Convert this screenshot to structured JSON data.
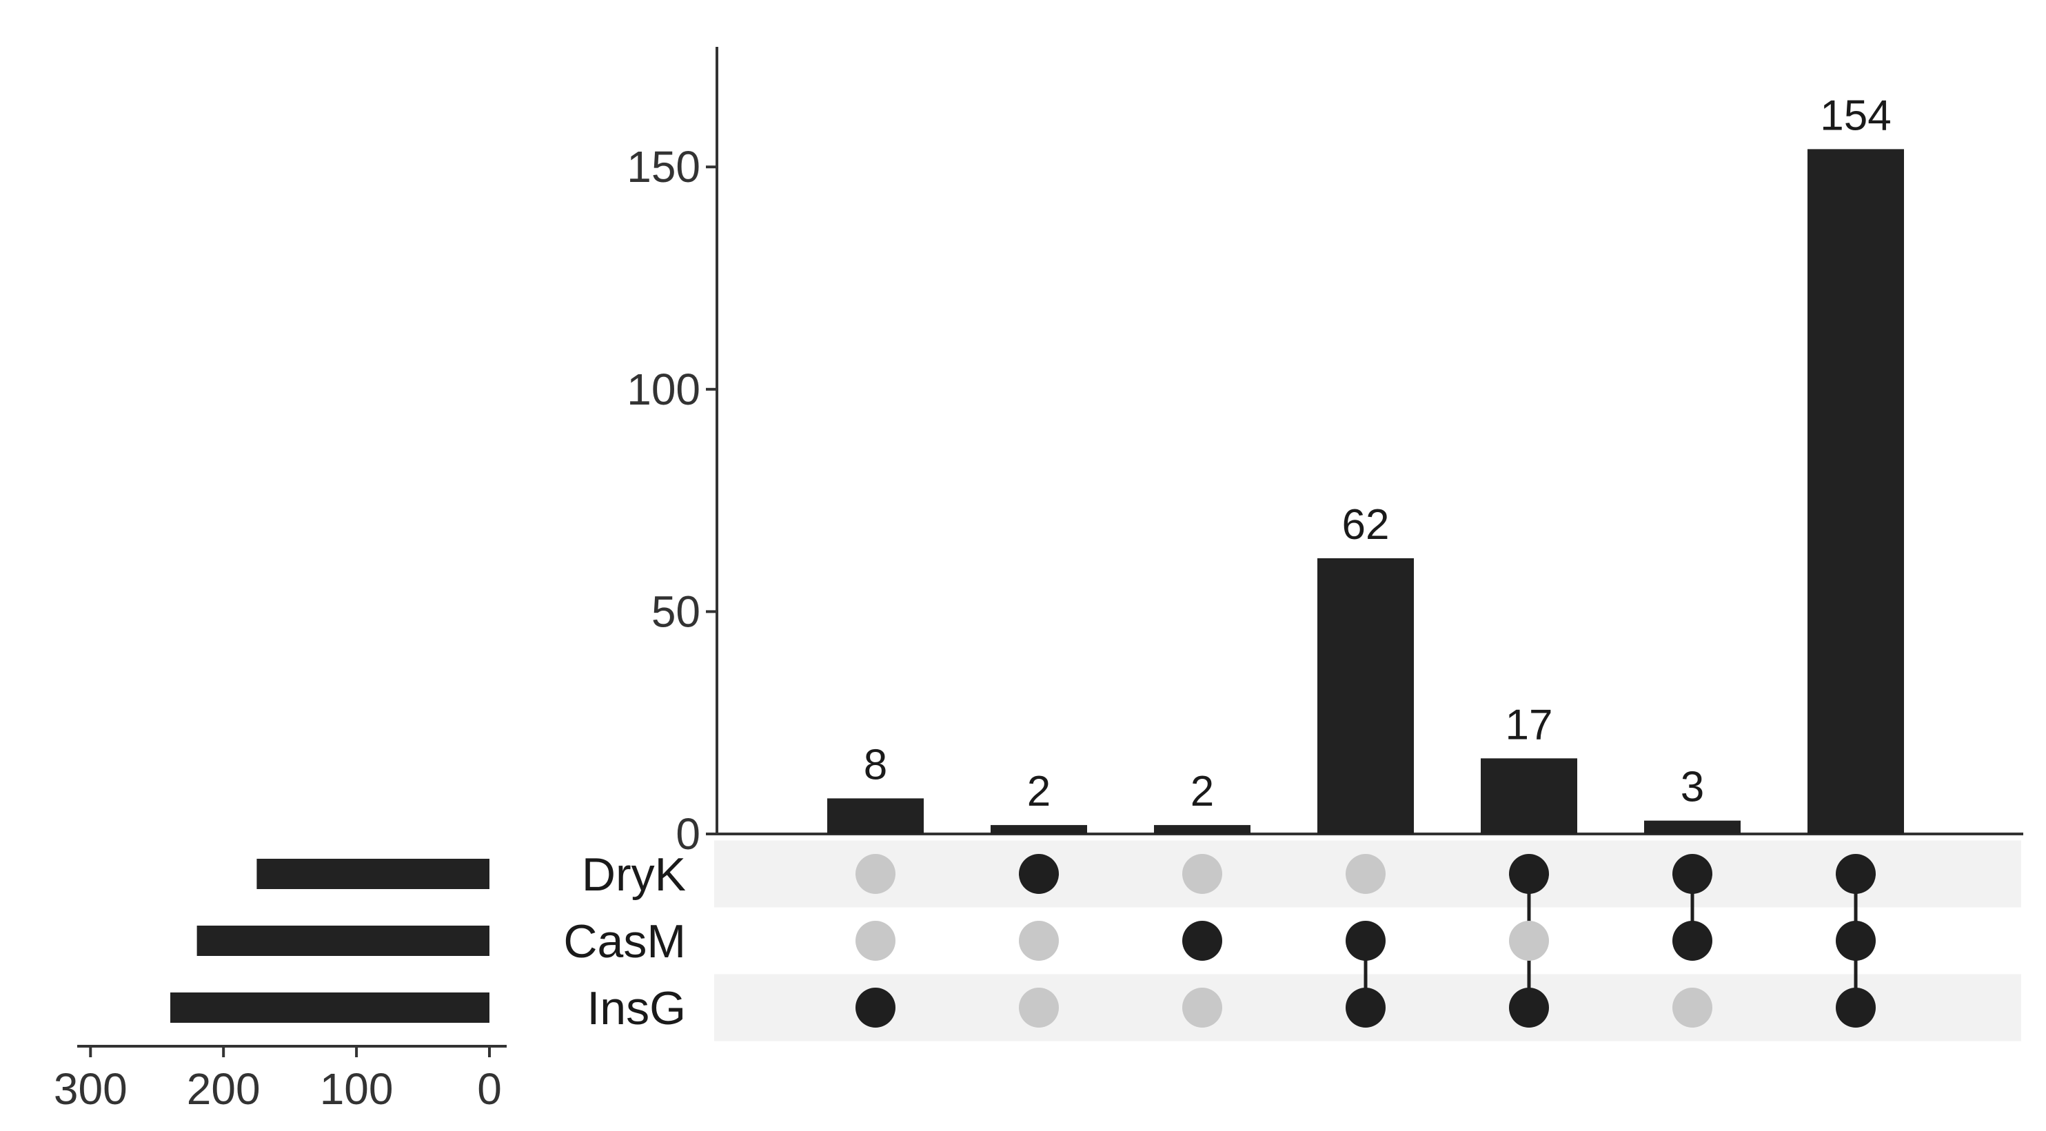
{
  "chart_data": {
    "type": "bar",
    "subtype": "upset",
    "sets": [
      "DryK",
      "CasM",
      "InsG"
    ],
    "set_sizes": {
      "DryK": 175,
      "CasM": 220,
      "InsG": 240
    },
    "set_size_axis": {
      "ticks": [
        300,
        200,
        100,
        0
      ],
      "range": [
        310,
        0
      ]
    },
    "intersections": [
      {
        "sets": [
          "InsG"
        ],
        "value": 8,
        "label": "8"
      },
      {
        "sets": [
          "DryK"
        ],
        "value": 2,
        "label": "2"
      },
      {
        "sets": [
          "CasM"
        ],
        "value": 2,
        "label": "2"
      },
      {
        "sets": [
          "CasM",
          "InsG"
        ],
        "value": 62,
        "label": "62"
      },
      {
        "sets": [
          "DryK",
          "InsG"
        ],
        "value": 17,
        "label": "17"
      },
      {
        "sets": [
          "DryK",
          "CasM"
        ],
        "value": 3,
        "label": "3"
      },
      {
        "sets": [
          "DryK",
          "CasM",
          "InsG"
        ],
        "value": 154,
        "label": "154"
      }
    ],
    "intersection_axis": {
      "ticks": [
        0,
        50,
        100,
        150
      ],
      "range": [
        0,
        177
      ]
    },
    "colors": {
      "bar": "#222222",
      "dot_active": "#1f1f1f",
      "dot_inactive": "#c8c8c8",
      "row_stripe": "#f2f2f2",
      "axis": "#333333"
    },
    "grid": false,
    "legend": "none"
  }
}
